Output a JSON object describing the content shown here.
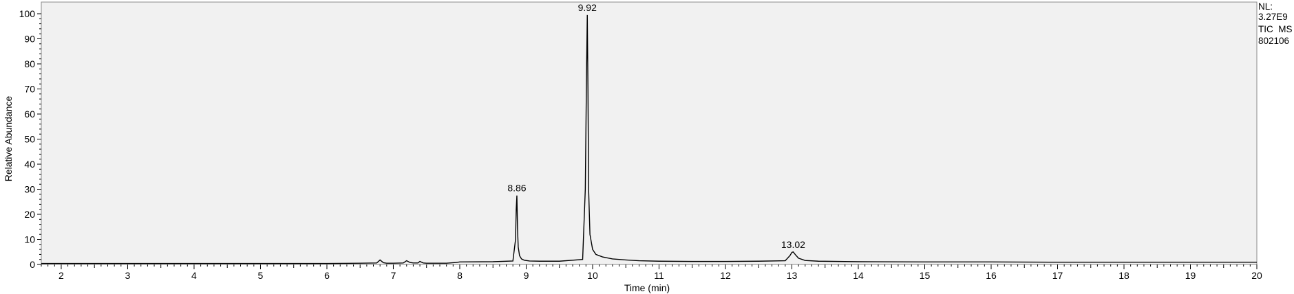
{
  "chart_data": {
    "type": "line",
    "title": "",
    "xlabel": "Time (min)",
    "ylabel": "Relative Abundance",
    "xlim": [
      1.7,
      20.0
    ],
    "ylim": [
      0,
      100
    ],
    "x_ticks": [
      2,
      3,
      4,
      5,
      6,
      7,
      8,
      9,
      10,
      11,
      12,
      13,
      14,
      15,
      16,
      17,
      18,
      19,
      20
    ],
    "y_ticks": [
      0,
      10,
      20,
      30,
      40,
      50,
      60,
      70,
      80,
      90,
      100
    ],
    "grid": false,
    "background_color": "#f1f1f1",
    "line_color": "#000000",
    "info_lines": [
      "NL:",
      "3.27E9",
      "TIC  MS",
      "802106"
    ],
    "annotations": [
      {
        "x": 8.86,
        "y": 27.5,
        "text": "8.86"
      },
      {
        "x": 9.92,
        "y": 99.5,
        "text": "9.92"
      },
      {
        "x": 13.02,
        "y": 5,
        "text": "13.02"
      }
    ],
    "series": [
      {
        "x": [
          1.7,
          2.0,
          3.0,
          4.0,
          5.0,
          6.0,
          6.5,
          6.75,
          6.8,
          6.85,
          6.9,
          7.0,
          7.15,
          7.2,
          7.25,
          7.3,
          7.37,
          7.4,
          7.45,
          7.5,
          7.8,
          7.95,
          8.0,
          8.5,
          8.8,
          8.84,
          8.85,
          8.86,
          8.87,
          8.88,
          8.9,
          8.93,
          8.97,
          9.05,
          9.2,
          9.5,
          9.85,
          9.89,
          9.91,
          9.92,
          9.93,
          9.94,
          9.96,
          10.0,
          10.05,
          10.15,
          10.3,
          10.5,
          10.7,
          11.0,
          11.5,
          12.0,
          12.5,
          12.9,
          12.97,
          13.0,
          13.02,
          13.05,
          13.1,
          13.2,
          13.4,
          14.0,
          15.0,
          16.0,
          17.0,
          18.0,
          19.0,
          20.0
        ],
        "values": [
          0.4,
          0.4,
          0.4,
          0.4,
          0.4,
          0.4,
          0.5,
          0.6,
          1.8,
          0.7,
          0.5,
          0.5,
          0.6,
          1.5,
          0.8,
          0.6,
          0.6,
          1.2,
          0.6,
          0.5,
          0.5,
          0.8,
          1.0,
          1.1,
          1.4,
          10,
          22,
          27.5,
          14,
          7,
          3.5,
          2.2,
          1.7,
          1.4,
          1.3,
          1.3,
          2.0,
          30,
          80,
          99.5,
          70,
          30,
          12,
          6,
          4,
          3,
          2.2,
          1.8,
          1.5,
          1.3,
          1.2,
          1.2,
          1.3,
          1.5,
          3.5,
          4.8,
          5.0,
          4.0,
          2.5,
          1.6,
          1.3,
          1.1,
          1.0,
          1.0,
          0.9,
          0.9,
          0.9,
          0.9
        ]
      }
    ]
  }
}
